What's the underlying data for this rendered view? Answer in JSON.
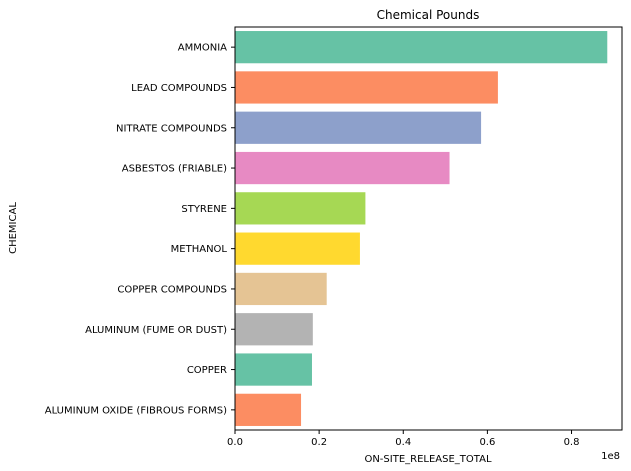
{
  "chart_data": {
    "type": "bar",
    "orientation": "horizontal",
    "title": "Chemical Pounds",
    "xlabel": "ON-SITE_RELEASE_TOTAL",
    "ylabel": "CHEMICAL",
    "offset_text": "1e8",
    "xlim": [
      0,
      0.92
    ],
    "xticks": [
      0.0,
      0.2,
      0.4,
      0.6,
      0.8
    ],
    "xtick_labels": [
      "0.0",
      "0.2",
      "0.4",
      "0.6",
      "0.8"
    ],
    "grid": false,
    "categories": [
      "AMMONIA",
      "LEAD COMPOUNDS",
      "NITRATE COMPOUNDS",
      "ASBESTOS (FRIABLE)",
      "STYRENE",
      "METHANOL",
      "COPPER COMPOUNDS",
      "ALUMINUM (FUME OR DUST)",
      "COPPER",
      "ALUMINUM OXIDE (FIBROUS FORMS)"
    ],
    "values": [
      0.885,
      0.625,
      0.585,
      0.51,
      0.31,
      0.297,
      0.218,
      0.185,
      0.183,
      0.157
    ],
    "colors": [
      "#66c2a5",
      "#fc8d62",
      "#8da0cb",
      "#e78ac3",
      "#a6d854",
      "#ffd92f",
      "#e5c494",
      "#b3b3b3",
      "#66c2a5",
      "#fc8d62"
    ]
  }
}
